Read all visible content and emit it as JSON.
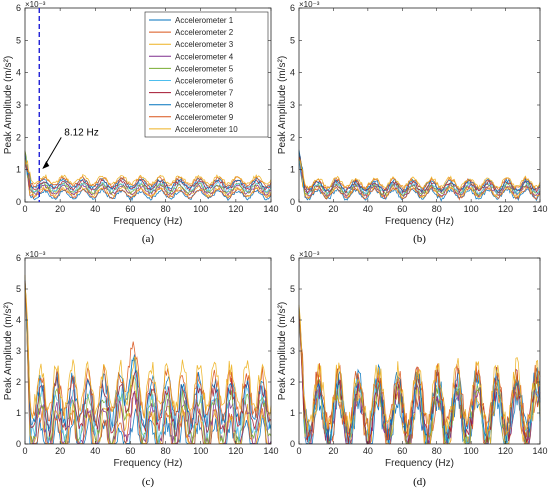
{
  "chart_data": [
    {
      "type": "line",
      "panel_label": "(a)",
      "xlabel": "Frequency (Hz)",
      "ylabel": "Peak Amplitude (m/s²)",
      "y_exponent": "×10⁻³",
      "xlim": [
        0,
        140
      ],
      "ylim": [
        0,
        6
      ],
      "xticks": [
        0,
        20,
        40,
        60,
        80,
        100,
        120,
        140
      ],
      "yticks": [
        0,
        1,
        2,
        3,
        4,
        5,
        6
      ],
      "legend_position": "top-right",
      "annotation": {
        "text": "8.12 Hz",
        "x": 8.12
      },
      "reference_line": {
        "x": 8.12,
        "style": "dashed",
        "color": "#1f1fd6"
      },
      "spectrum": {
        "peak_y": 1.4,
        "base": 0.45,
        "ripple_amp": 0.12,
        "ripple_spacing": 11,
        "series_spread": 0.05
      }
    },
    {
      "type": "line",
      "panel_label": "(b)",
      "xlabel": "Frequency (Hz)",
      "ylabel": "Peak Amplitude (m/s²)",
      "y_exponent": "×10⁻³",
      "xlim": [
        0,
        140
      ],
      "ylim": [
        0,
        6
      ],
      "xticks": [
        0,
        20,
        40,
        60,
        80,
        100,
        120,
        140
      ],
      "yticks": [
        0,
        1,
        2,
        3,
        4,
        5,
        6
      ],
      "spectrum": {
        "peak_y": 1.45,
        "base": 0.42,
        "ripple_amp": 0.14,
        "ripple_spacing": 11,
        "series_spread": 0.04
      }
    },
    {
      "type": "line",
      "panel_label": "(c)",
      "xlabel": "Frequency (Hz)",
      "ylabel": "Peak Amplitude (m/s²)",
      "y_exponent": "×10⁻³",
      "xlim": [
        0,
        140
      ],
      "ylim": [
        0,
        6
      ],
      "xticks": [
        0,
        20,
        40,
        60,
        80,
        100,
        120,
        140
      ],
      "yticks": [
        0,
        1,
        2,
        3,
        4,
        5,
        6
      ],
      "spectrum": {
        "peak_y": 5.3,
        "base": 0.9,
        "ripple_amp": 0.7,
        "ripple_spacing": 9,
        "series_spread": 0.2
      }
    },
    {
      "type": "line",
      "panel_label": "(d)",
      "xlabel": "Frequency (Hz)",
      "ylabel": "Peak Amplitude (m/s²)",
      "y_exponent": "×10⁻³",
      "xlim": [
        0,
        140
      ],
      "ylim": [
        0,
        6
      ],
      "xticks": [
        0,
        20,
        40,
        60,
        80,
        100,
        120,
        140
      ],
      "yticks": [
        0,
        1,
        2,
        3,
        4,
        5,
        6
      ],
      "spectrum": {
        "peak_y": 4.3,
        "base": 1.05,
        "ripple_amp": 0.9,
        "ripple_spacing": 11.5,
        "series_spread": 0.1
      }
    }
  ],
  "series": [
    {
      "name": "Accelerometer 1",
      "color": "#0072BD"
    },
    {
      "name": "Accelerometer 2",
      "color": "#D95319"
    },
    {
      "name": "Accelerometer 3",
      "color": "#EDB120"
    },
    {
      "name": "Accelerometer 4",
      "color": "#7E2F8E"
    },
    {
      "name": "Accelerometer 5",
      "color": "#77AC30"
    },
    {
      "name": "Accelerometer 6",
      "color": "#4DBEEE"
    },
    {
      "name": "Accelerometer 7",
      "color": "#A2142F"
    },
    {
      "name": "Accelerometer 8",
      "color": "#0072BD"
    },
    {
      "name": "Accelerometer 9",
      "color": "#D95319"
    },
    {
      "name": "Accelerometer 10",
      "color": "#EDB120"
    }
  ]
}
